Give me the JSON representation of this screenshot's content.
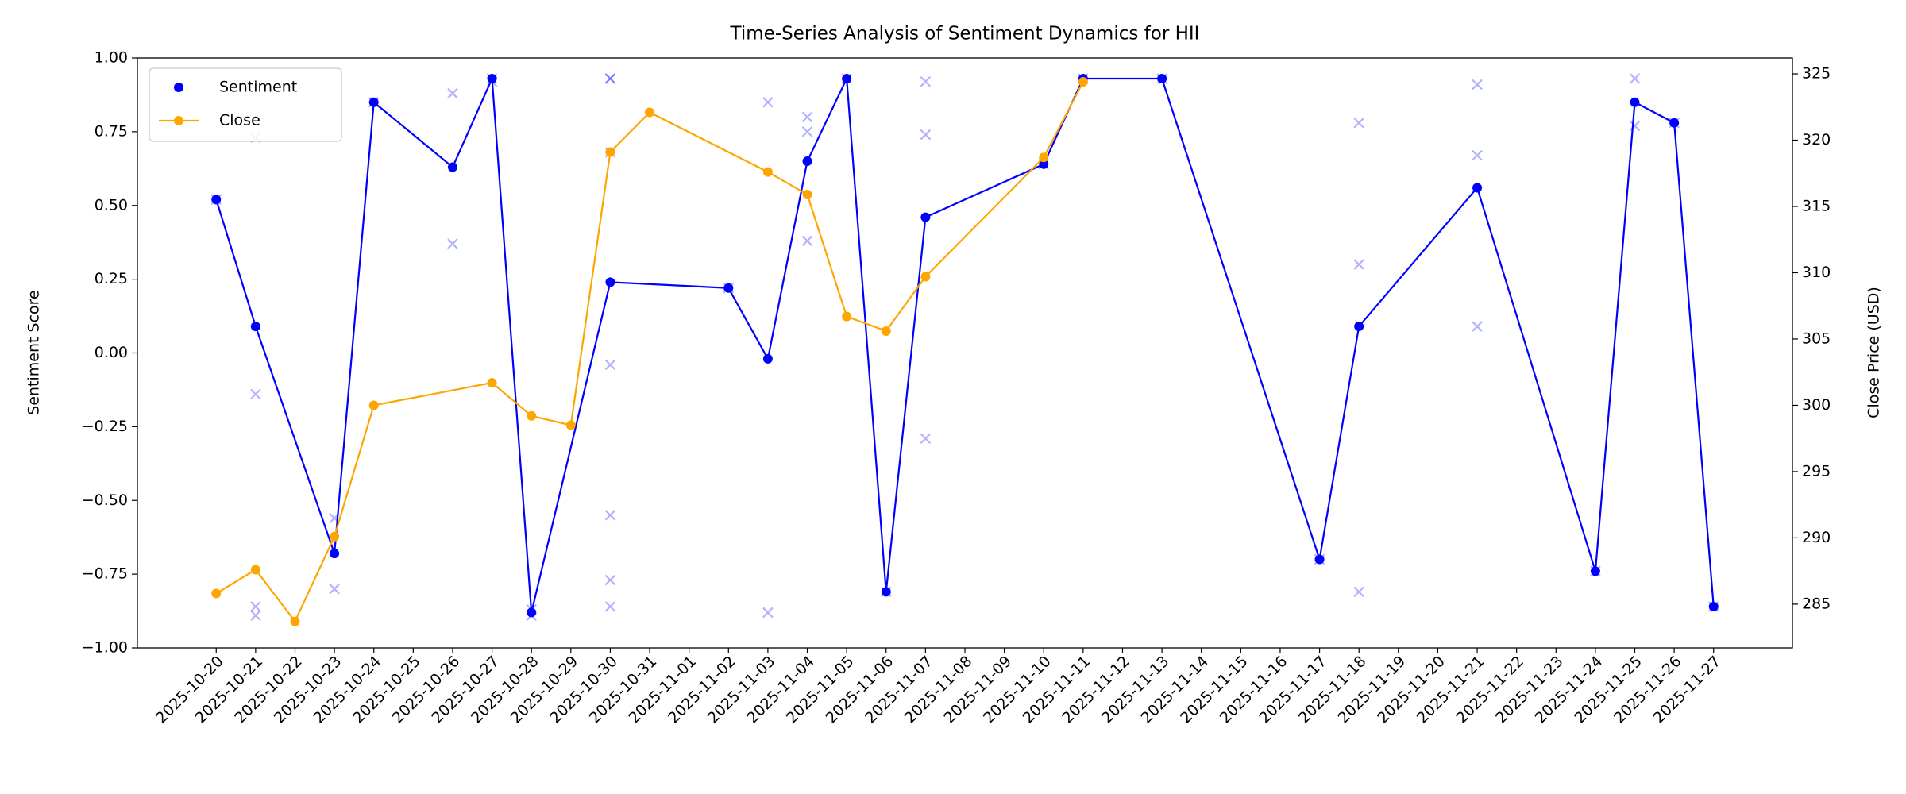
{
  "chart_data": {
    "type": "line",
    "title": "Time-Series Analysis of Sentiment Dynamics for HII",
    "y_label": "Sentiment Score",
    "y2_label": "Close Price (USD)",
    "legend": "upper left",
    "xlim": [
      "2025-10-18",
      "2025-11-29"
    ],
    "xticks": [
      "2025-10-20",
      "2025-10-21",
      "2025-10-22",
      "2025-10-23",
      "2025-10-24",
      "2025-10-25",
      "2025-10-26",
      "2025-10-27",
      "2025-10-28",
      "2025-10-29",
      "2025-10-30",
      "2025-10-31",
      "2025-11-01",
      "2025-11-02",
      "2025-11-03",
      "2025-11-04",
      "2025-11-05",
      "2025-11-06",
      "2025-11-07",
      "2025-11-08",
      "2025-11-09",
      "2025-11-10",
      "2025-11-11",
      "2025-11-12",
      "2025-11-13",
      "2025-11-14",
      "2025-11-15",
      "2025-11-16",
      "2025-11-17",
      "2025-11-18",
      "2025-11-19",
      "2025-11-20",
      "2025-11-21",
      "2025-11-22",
      "2025-11-23",
      "2025-11-24",
      "2025-11-25",
      "2025-11-26",
      "2025-11-27"
    ],
    "ylim": [
      -1,
      1
    ],
    "yticks": [
      {
        "value": -1,
        "label": "−1.00"
      },
      {
        "value": -0.75,
        "label": "−0.75"
      },
      {
        "value": -0.5,
        "label": "−0.50"
      },
      {
        "value": -0.25,
        "label": "−0.25"
      },
      {
        "value": 0,
        "label": "0.00"
      },
      {
        "value": 0.25,
        "label": "0.25"
      },
      {
        "value": 0.5,
        "label": "0.50"
      },
      {
        "value": 0.75,
        "label": "0.75"
      },
      {
        "value": 1,
        "label": "1.00"
      }
    ],
    "y2lim": [
      281.7,
      326.2
    ],
    "y2ticks": [
      285,
      290,
      295,
      300,
      305,
      310,
      315,
      320,
      325
    ],
    "series": [
      {
        "name": "Sentiment",
        "color": "#0000ff",
        "x": [
          "2025-10-20",
          "2025-10-21",
          "2025-10-23",
          "2025-10-24",
          "2025-10-26",
          "2025-10-27",
          "2025-10-28",
          "2025-10-30",
          "2025-11-02",
          "2025-11-03",
          "2025-11-04",
          "2025-11-05",
          "2025-11-06",
          "2025-11-07",
          "2025-11-10",
          "2025-11-11",
          "2025-11-13",
          "2025-11-17",
          "2025-11-18",
          "2025-11-21",
          "2025-11-24",
          "2025-11-25",
          "2025-11-26",
          "2025-11-27"
        ],
        "values": [
          0.52,
          0.09,
          -0.68,
          0.85,
          0.63,
          0.93,
          -0.88,
          0.24,
          0.22,
          -0.02,
          0.65,
          0.93,
          -0.81,
          0.46,
          0.64,
          0.93,
          0.93,
          -0.7,
          0.09,
          0.56,
          -0.74,
          0.85,
          0.78,
          -0.86
        ]
      },
      {
        "name": "Close",
        "color": "#ffa500",
        "axis": "y2",
        "x": [
          "2025-10-20",
          "2025-10-21",
          "2025-10-22",
          "2025-10-23",
          "2025-10-24",
          "2025-10-27",
          "2025-10-28",
          "2025-10-29",
          "2025-10-30",
          "2025-10-31",
          "2025-11-03",
          "2025-11-04",
          "2025-11-05",
          "2025-11-06",
          "2025-11-07",
          "2025-11-10",
          "2025-11-11"
        ],
        "values": [
          285.8,
          287.6,
          283.7,
          290.1,
          300.0,
          301.7,
          299.2,
          298.5,
          319.1,
          322.1,
          317.6,
          315.9,
          306.7,
          305.6,
          309.7,
          318.7,
          324.4
        ]
      }
    ],
    "points": {
      "color": "#0000ff",
      "x": [
        "2025-10-20",
        "2025-10-21",
        "2025-10-21",
        "2025-10-21",
        "2025-10-21",
        "2025-10-23",
        "2025-10-23",
        "2025-10-24",
        "2025-10-26",
        "2025-10-26",
        "2025-10-27",
        "2025-10-27",
        "2025-10-28",
        "2025-10-28",
        "2025-10-30",
        "2025-10-30",
        "2025-10-30",
        "2025-10-30",
        "2025-10-30",
        "2025-10-30",
        "2025-10-30",
        "2025-11-02",
        "2025-11-03",
        "2025-11-03",
        "2025-11-04",
        "2025-11-04",
        "2025-11-04",
        "2025-11-05",
        "2025-11-06",
        "2025-11-07",
        "2025-11-07",
        "2025-11-07",
        "2025-11-10",
        "2025-11-11",
        "2025-11-13",
        "2025-11-17",
        "2025-11-18",
        "2025-11-18",
        "2025-11-18",
        "2025-11-21",
        "2025-11-21",
        "2025-11-21",
        "2025-11-24",
        "2025-11-25",
        "2025-11-25",
        "2025-11-26",
        "2025-11-27"
      ],
      "values": [
        0.52,
        0.73,
        -0.14,
        -0.86,
        -0.89,
        -0.56,
        -0.8,
        0.85,
        0.88,
        0.37,
        0.93,
        0.92,
        -0.87,
        -0.89,
        0.93,
        0.93,
        0.68,
        -0.04,
        -0.55,
        -0.77,
        -0.86,
        0.22,
        0.85,
        -0.88,
        0.8,
        0.75,
        0.38,
        0.93,
        -0.81,
        0.92,
        0.74,
        -0.29,
        0.64,
        0.93,
        0.93,
        -0.7,
        0.78,
        0.3,
        -0.81,
        0.91,
        0.67,
        0.09,
        -0.74,
        0.93,
        0.77,
        0.78,
        -0.86
      ]
    }
  }
}
